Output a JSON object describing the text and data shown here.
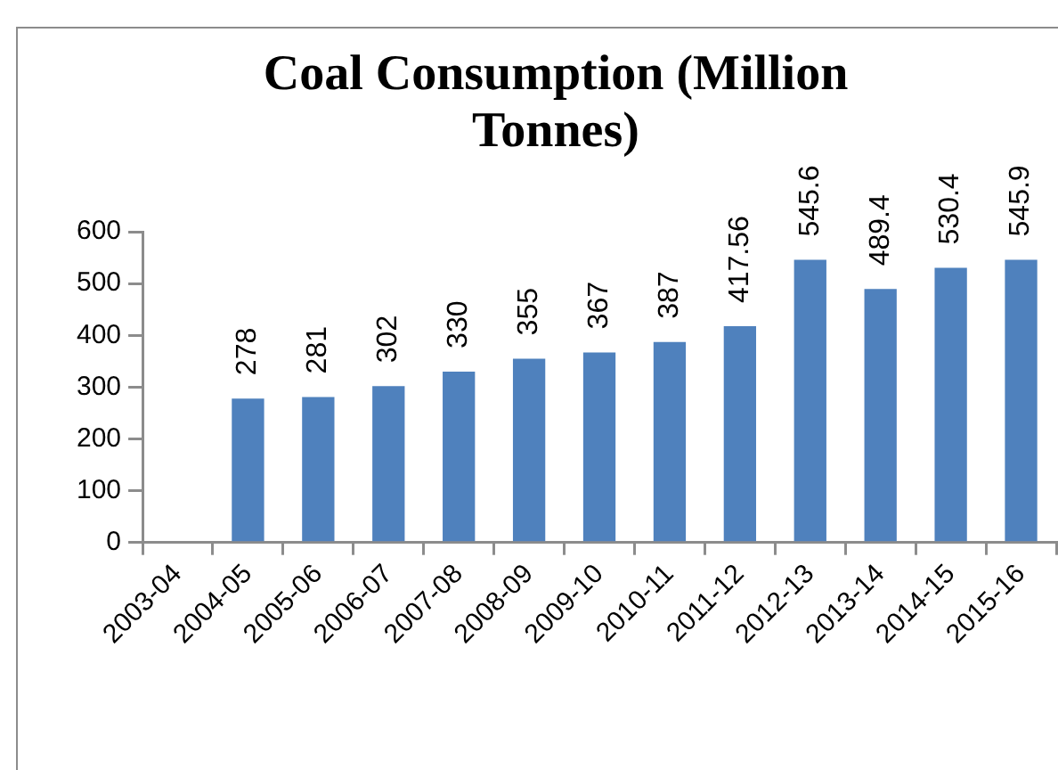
{
  "chart_data": {
    "type": "bar",
    "title": "Coal Consumption (Million Tonnes)",
    "categories": [
      "2003-04",
      "2004-05",
      "2005-06",
      "2006-07",
      "2007-08",
      "2008-09",
      "2009-10",
      "2010-11",
      "2011-12",
      "2012-13",
      "2013-14",
      "2014-15",
      "2015-16"
    ],
    "values": [
      null,
      278,
      281,
      302,
      330,
      355,
      367,
      387,
      417.56,
      545.6,
      489.4,
      530.4,
      545.9
    ],
    "color": "#4f81bd",
    "ylim": [
      0,
      600
    ],
    "yticks": [
      0,
      100,
      200,
      300,
      400,
      500,
      600
    ],
    "grid": false,
    "data_labels": true
  }
}
